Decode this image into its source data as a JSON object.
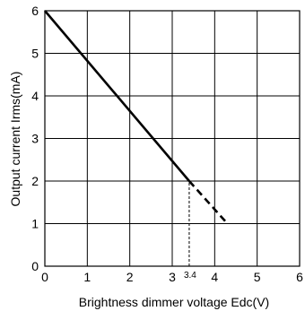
{
  "chart_data": {
    "type": "line",
    "xlabel": "Brightness dimmer voltage Edc(V)",
    "ylabel": "Output current Irms(mA)",
    "xlim": [
      0,
      6
    ],
    "ylim": [
      0,
      6
    ],
    "x_ticks": [
      "0",
      "1",
      "2",
      "3",
      "4",
      "5",
      "6"
    ],
    "y_ticks": [
      "0",
      "1",
      "2",
      "3",
      "4",
      "5",
      "6"
    ],
    "grid": true,
    "annotations": [
      {
        "text": "3.4",
        "x": 3.4
      }
    ],
    "series": [
      {
        "style": "solid",
        "x": [
          0,
          3.4
        ],
        "y": [
          6,
          2
        ]
      },
      {
        "style": "dashed",
        "x": [
          3.4,
          4.3
        ],
        "y": [
          2,
          1
        ]
      }
    ],
    "guide_lines": [
      {
        "style": "dotted",
        "x": [
          3.4,
          3.4
        ],
        "y": [
          0,
          2
        ]
      }
    ]
  }
}
